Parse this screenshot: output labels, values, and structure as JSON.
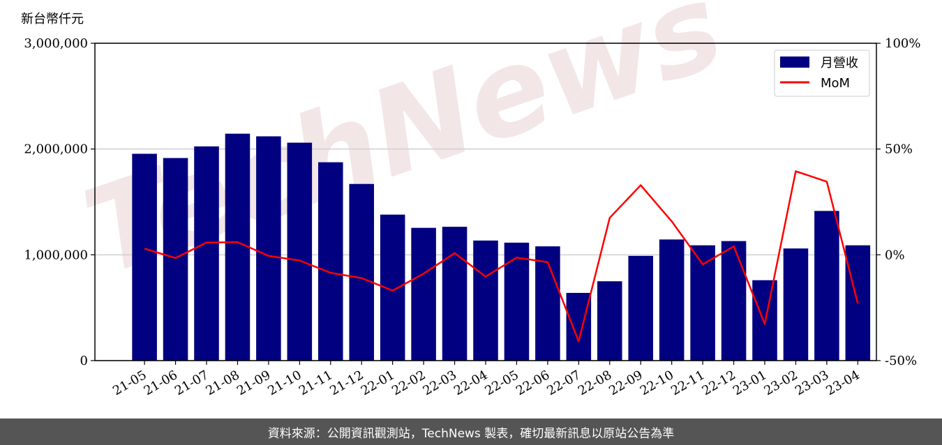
{
  "chart_data": {
    "type": "bar",
    "y_unit_label": "新台幣仟元",
    "categories": [
      "21-05",
      "21-06",
      "21-07",
      "21-08",
      "21-09",
      "21-10",
      "21-11",
      "21-12",
      "22-01",
      "22-02",
      "22-03",
      "22-04",
      "22-05",
      "22-06",
      "22-07",
      "22-08",
      "22-09",
      "22-10",
      "22-11",
      "22-12",
      "23-01",
      "23-02",
      "23-03",
      "23-04"
    ],
    "series": [
      {
        "name": "月營收",
        "kind": "bar",
        "axis": "left",
        "color": "#000080",
        "values": [
          1955000,
          1915000,
          2025000,
          2145000,
          2120000,
          2060000,
          1875000,
          1670000,
          1380000,
          1255000,
          1265000,
          1135000,
          1115000,
          1080000,
          640000,
          750000,
          990000,
          1145000,
          1090000,
          1130000,
          760000,
          1060000,
          1415000,
          1090000
        ]
      },
      {
        "name": "MoM",
        "kind": "line",
        "axis": "right",
        "color": "#ff0000",
        "values": [
          2.9,
          -1.5,
          5.8,
          6.0,
          -0.5,
          -2.7,
          -8.5,
          -11.0,
          -16.9,
          -8.9,
          0.8,
          -10.3,
          -1.3,
          -3.5,
          -40.9,
          17.5,
          32.9,
          15.8,
          -4.5,
          4.0,
          -32.7,
          39.5,
          34.6,
          -22.9
        ]
      }
    ],
    "ylim_left": [
      0,
      3000000
    ],
    "yticks_left": [
      "0",
      "1,000,000",
      "2,000,000",
      "3,000,000"
    ],
    "ylim_right": [
      -50,
      100
    ],
    "yticks_right": [
      "-50%",
      "0%",
      "50%",
      "100%"
    ],
    "grid": "horizontal",
    "legend_position": "top-right"
  },
  "watermark_text": "TechNews",
  "footer": {
    "source_text": "資料來源：公開資訊觀測站，TechNews 製表，確切最新訊息以原站公告為準"
  }
}
